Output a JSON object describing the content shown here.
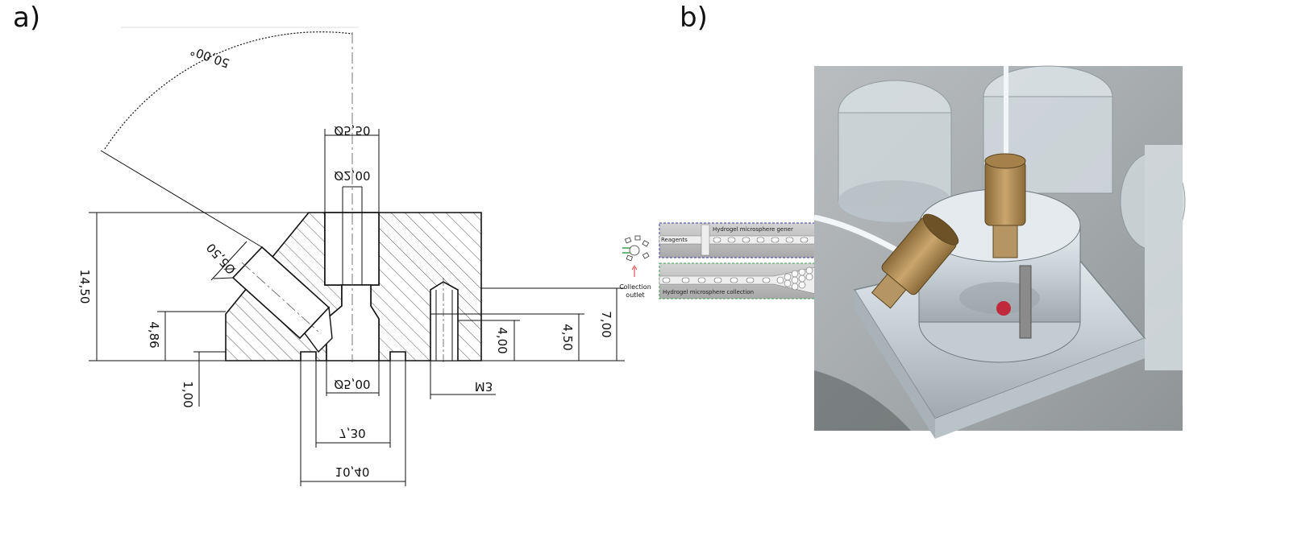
{
  "panels": {
    "a_label": "a)",
    "b_label": "b)"
  },
  "drawing": {
    "angle": "50,00°",
    "d_top_outer": "Ø5,50",
    "d_top_inner": "Ø2,00",
    "d_angled": "Ø5,50",
    "h_total": "14,50",
    "h_left": "4,86",
    "h_small": "1,00",
    "d_bottom": "Ø5,00",
    "w_inner": "7,30",
    "w_outer": "10,40",
    "h_mid1": "4,00",
    "h_mid2": "4,50",
    "h_right": "7,00",
    "thread": "M3"
  },
  "inset": {
    "top_label": "Hydrogel microsphere gener",
    "reagents": "Reagents",
    "bottom_label": "Hydrogel microsphere collection",
    "outlet_line1": "Collection",
    "outlet_line2": "outlet"
  },
  "colors": {
    "top_frame": "#3a3aa8",
    "bottom_frame": "#3aa050"
  }
}
